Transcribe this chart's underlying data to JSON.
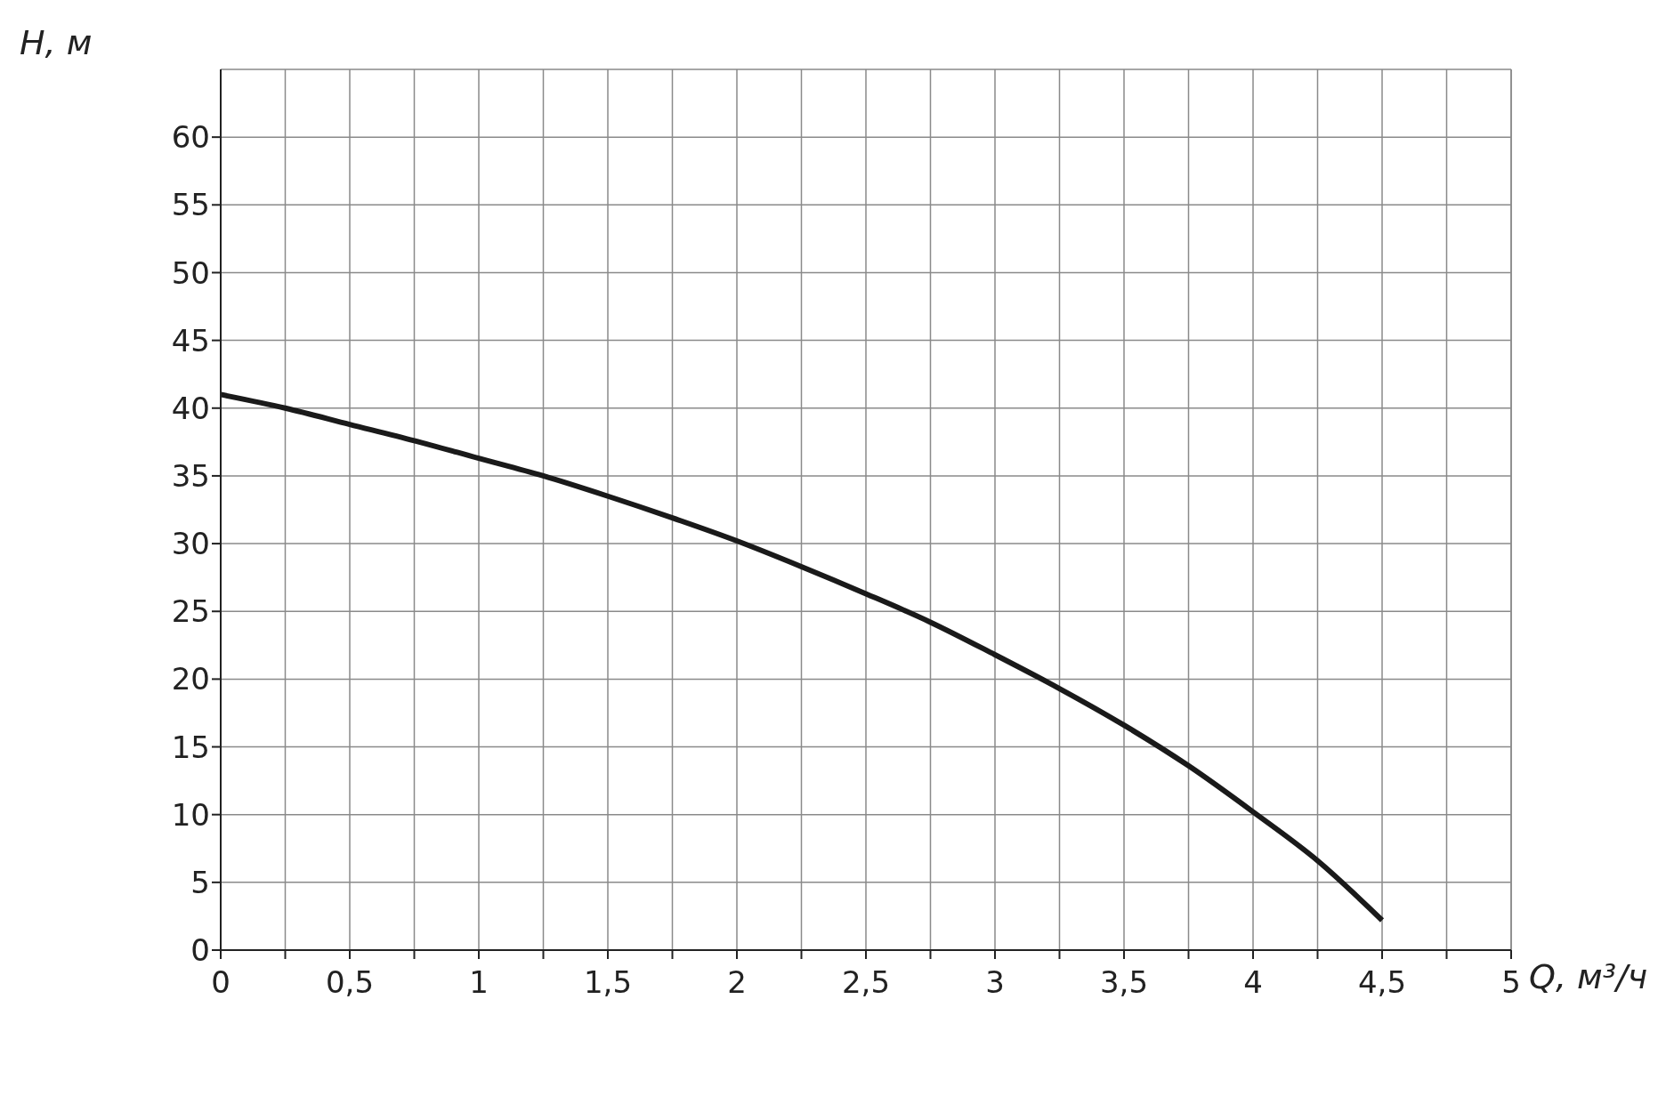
{
  "chart_data": {
    "type": "line",
    "xlabel": "Q, м³/ч",
    "ylabel": "H, м",
    "x": [
      0,
      0.25,
      0.5,
      0.75,
      1,
      1.25,
      1.5,
      1.75,
      2,
      2.25,
      2.5,
      2.75,
      3,
      3.25,
      3.5,
      3.75,
      4,
      4.25,
      4.5
    ],
    "series": [
      {
        "color": "#1a1a1a",
        "values": [
          41,
          40,
          38.8,
          37.6,
          36.3,
          35,
          33.5,
          31.9,
          30.2,
          28.3,
          26.3,
          24.2,
          21.8,
          19.3,
          16.6,
          13.6,
          10.2,
          6.6,
          2.2
        ]
      }
    ],
    "xlim": [
      0,
      5
    ],
    "xticks": [
      0,
      {
        "value": 0.25,
        "label": null
      },
      {
        "value": 0.5,
        "label": "0,5"
      },
      {
        "value": 0.75,
        "label": null
      },
      1,
      {
        "value": 1.25,
        "label": null
      },
      {
        "value": 1.5,
        "label": "1,5"
      },
      {
        "value": 1.75,
        "label": null
      },
      2,
      {
        "value": 2.25,
        "label": null
      },
      {
        "value": 2.5,
        "label": "2,5"
      },
      {
        "value": 2.75,
        "label": null
      },
      3,
      {
        "value": 3.25,
        "label": null
      },
      {
        "value": 3.5,
        "label": "3,5"
      },
      {
        "value": 3.75,
        "label": null
      },
      4,
      {
        "value": 4.25,
        "label": null
      },
      {
        "value": 4.5,
        "label": "4,5"
      },
      {
        "value": 4.75,
        "label": null
      },
      5
    ],
    "ylim": [
      0,
      65
    ],
    "yticks": [
      0,
      5,
      10,
      15,
      20,
      25,
      30,
      35,
      40,
      45,
      50,
      55,
      60
    ],
    "grid": true,
    "legend": false,
    "marker": "none",
    "line_style": "solid"
  }
}
